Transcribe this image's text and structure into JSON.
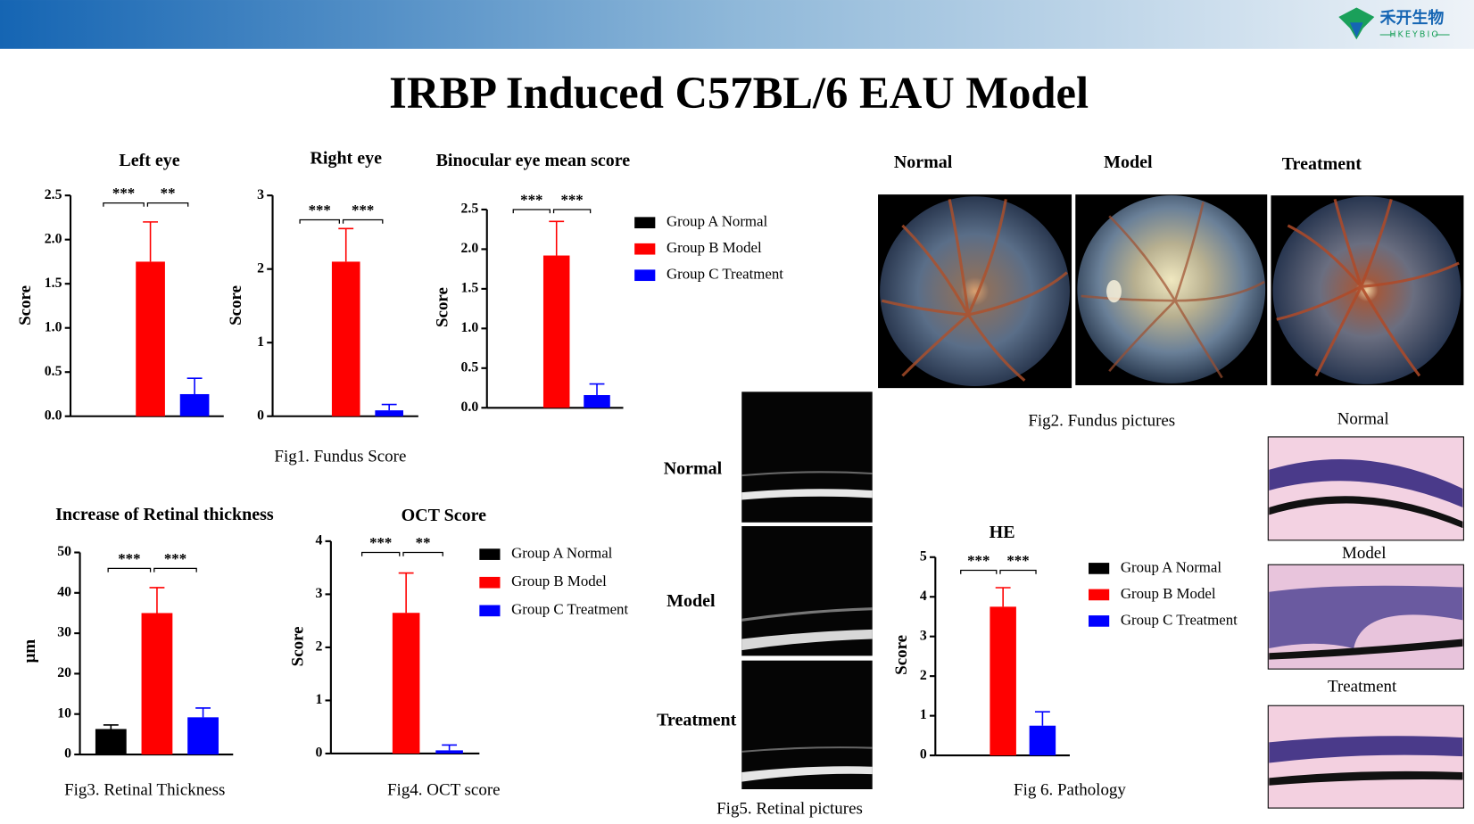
{
  "title": "IRBP Induced C57BL/6 EAU Model",
  "logo": {
    "name": "禾开生物",
    "sub": "HKEYBIO"
  },
  "chart_data": [
    {
      "type": "bar",
      "title": "Left eye",
      "y_label": "Score",
      "ylim": [
        0,
        2.5
      ],
      "yticks": [
        {
          "value": 0,
          "label": "0.0"
        },
        0.5,
        {
          "value": 1,
          "label": "1.0"
        },
        1.5,
        {
          "value": 2,
          "label": "2.0"
        },
        2.5
      ],
      "series": [
        {
          "color": "#000000",
          "values": [
            0
          ],
          "errors": [
            0
          ]
        },
        {
          "color": "#ff0000",
          "values": [
            1.75
          ],
          "errors": [
            0.45
          ]
        },
        {
          "color": "#0000ff",
          "values": [
            0.25
          ],
          "errors": [
            0.18
          ]
        }
      ],
      "significance": [
        "***",
        "**"
      ]
    },
    {
      "type": "bar",
      "title": "Right eye",
      "y_label": "Score",
      "ylim": [
        0,
        3
      ],
      "yticks": [
        0,
        1,
        2,
        3
      ],
      "series": [
        {
          "color": "#000000",
          "values": [
            0
          ],
          "errors": [
            0
          ]
        },
        {
          "color": "#ff0000",
          "values": [
            2.1
          ],
          "errors": [
            0.45
          ]
        },
        {
          "color": "#0000ff",
          "values": [
            0.08
          ],
          "errors": [
            0.08
          ]
        }
      ],
      "significance": [
        "***",
        "***"
      ]
    },
    {
      "type": "bar",
      "title": "Binocular eye mean score",
      "y_label": "Score",
      "ylim": [
        0,
        2.5
      ],
      "yticks": [
        {
          "value": 0,
          "label": "0.0"
        },
        0.5,
        {
          "value": 1,
          "label": "1.0"
        },
        1.5,
        {
          "value": 2,
          "label": "2.0"
        },
        2.5
      ],
      "series": [
        {
          "name": "Group A Normal",
          "color": "#000000",
          "values": [
            0
          ],
          "errors": [
            0
          ]
        },
        {
          "name": "Group B Model",
          "color": "#ff0000",
          "values": [
            1.92
          ],
          "errors": [
            0.43
          ]
        },
        {
          "name": "Group C Treatment",
          "color": "#0000ff",
          "values": [
            0.16
          ],
          "errors": [
            0.14
          ]
        }
      ],
      "significance": [
        "***",
        "***"
      ],
      "legend": true
    },
    {
      "type": "bar",
      "title": "Increase of Retinal thickness",
      "y_label": "μm",
      "ylim": [
        0,
        50
      ],
      "yticks": [
        0,
        10,
        20,
        30,
        40,
        50
      ],
      "series": [
        {
          "color": "#000000",
          "values": [
            6.3
          ],
          "errors": [
            1
          ]
        },
        {
          "color": "#ff0000",
          "values": [
            35
          ],
          "errors": [
            6.3
          ]
        },
        {
          "color": "#0000ff",
          "values": [
            9.2
          ],
          "errors": [
            2.3
          ]
        }
      ],
      "significance": [
        "***",
        "***"
      ]
    },
    {
      "type": "bar",
      "title": "OCT Score",
      "y_label": "Score",
      "ylim": [
        0,
        4
      ],
      "yticks": [
        0,
        1,
        2,
        3,
        4
      ],
      "series": [
        {
          "name": "Group A Normal",
          "color": "#000000",
          "values": [
            0
          ],
          "errors": [
            0
          ]
        },
        {
          "name": "Group B Model",
          "color": "#ff0000",
          "values": [
            2.65
          ],
          "errors": [
            0.75
          ]
        },
        {
          "name": "Group C Treatment",
          "color": "#0000ff",
          "values": [
            0.06
          ],
          "errors": [
            0.1
          ]
        }
      ],
      "significance": [
        "***",
        "**"
      ],
      "legend": true
    },
    {
      "type": "bar",
      "title": "HE",
      "y_label": "Score",
      "ylim": [
        0,
        5
      ],
      "yticks": [
        0,
        1,
        2,
        3,
        4,
        5
      ],
      "series": [
        {
          "name": "Group A Normal",
          "color": "#000000",
          "values": [
            0
          ],
          "errors": [
            0
          ]
        },
        {
          "name": "Group B Model",
          "color": "#ff0000",
          "values": [
            3.75
          ],
          "errors": [
            0.48
          ]
        },
        {
          "name": "Group C Treatment",
          "color": "#0000ff",
          "values": [
            0.75
          ],
          "errors": [
            0.35
          ]
        }
      ],
      "significance": [
        "***",
        "***"
      ],
      "legend": true
    }
  ],
  "captions": [
    "Fig1. Fundus Score",
    "Fig2. Fundus pictures",
    "Fig3. Retinal Thickness",
    "Fig4. OCT score",
    "Fig5. Retinal pictures",
    "Fig 6. Pathology"
  ],
  "fundus_labels": [
    "Normal",
    "Model",
    "Treatment"
  ],
  "oct_labels": [
    "Normal",
    "Model",
    "Treatment"
  ],
  "pathology_labels": [
    "Normal",
    "Model",
    "Treatment"
  ]
}
